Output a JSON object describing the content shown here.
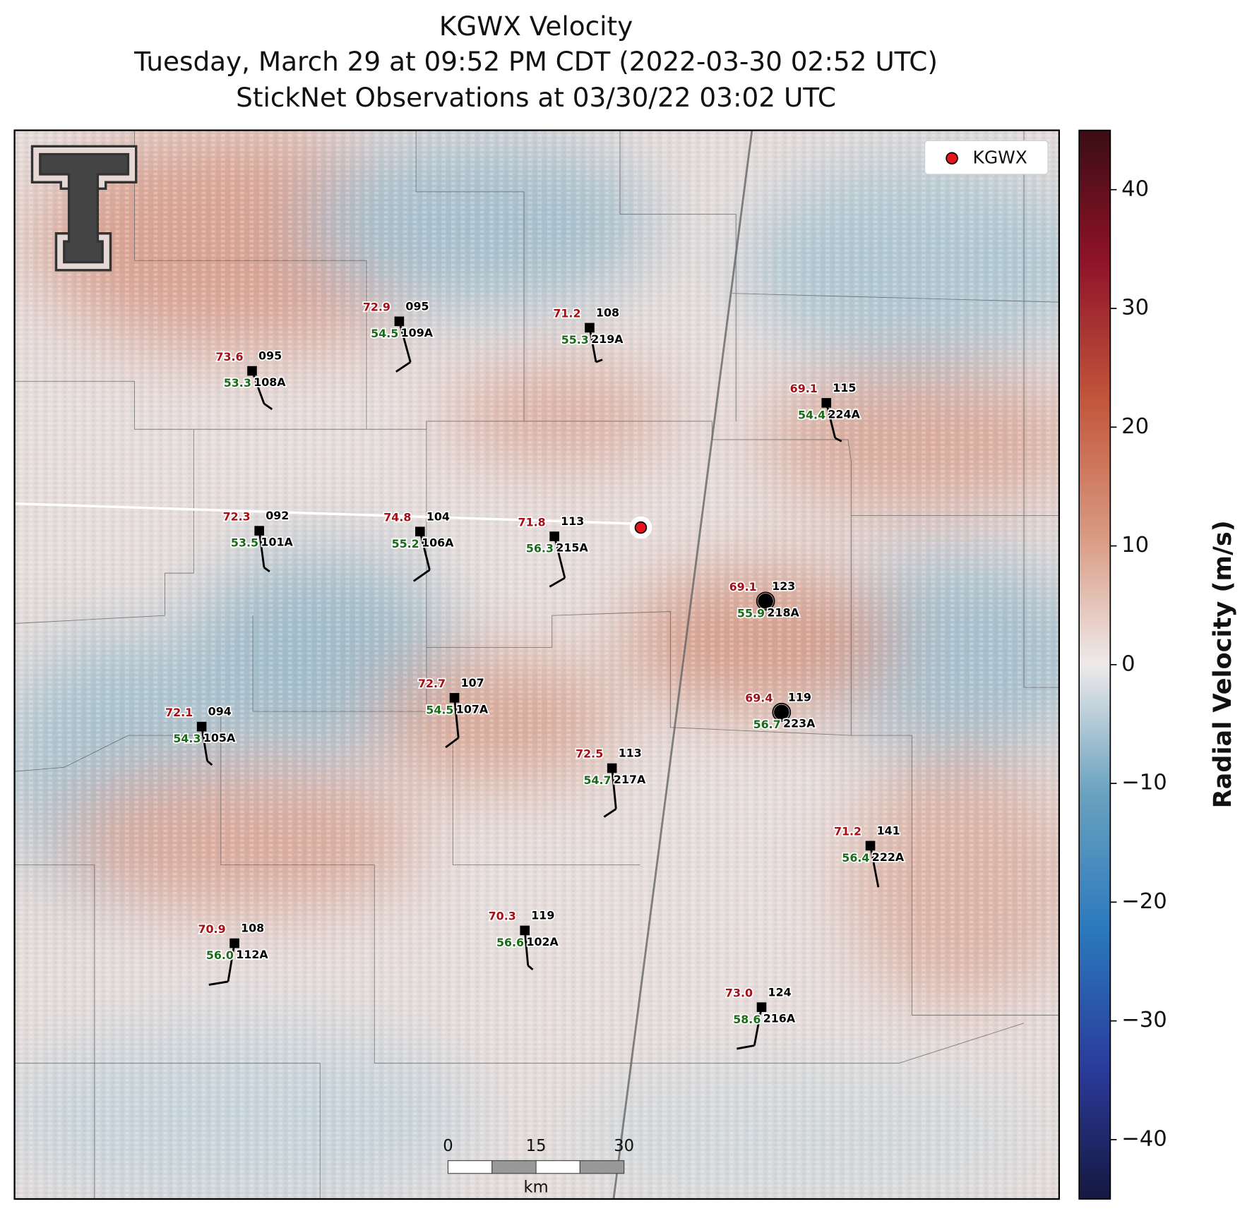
{
  "header": {
    "title": "KGWX Velocity",
    "subtitle": "Tuesday, March 29 at 09:52 PM CDT (2022-03-30 02:52 UTC)",
    "observations": "StickNet Observations at 03/30/22 03:02 UTC"
  },
  "legend": {
    "label": "KGWX"
  },
  "stations": [
    {
      "temperature": "73.6",
      "value": "095",
      "dewpoint": "53.3",
      "id": "108A"
    },
    {
      "temperature": "72.9",
      "value": "095",
      "dewpoint": "54.5",
      "id": "109A"
    },
    {
      "temperature": "71.2",
      "value": "108",
      "dewpoint": "55.3",
      "id": "219A"
    },
    {
      "temperature": "69.1",
      "value": "115",
      "dewpoint": "54.4",
      "id": "224A"
    },
    {
      "temperature": "72.3",
      "value": "092",
      "dewpoint": "53.5",
      "id": "101A"
    },
    {
      "temperature": "74.8",
      "value": "104",
      "dewpoint": "55.2",
      "id": "106A"
    },
    {
      "temperature": "71.8",
      "value": "113",
      "dewpoint": "56.3",
      "id": "215A"
    },
    {
      "temperature": "69.1",
      "value": "123",
      "dewpoint": "55.9",
      "id": "218A"
    },
    {
      "temperature": "72.7",
      "value": "107",
      "dewpoint": "54.5",
      "id": "107A"
    },
    {
      "temperature": "69.4",
      "value": "119",
      "dewpoint": "56.7",
      "id": "223A"
    },
    {
      "temperature": "72.1",
      "value": "094",
      "dewpoint": "54.3",
      "id": "105A"
    },
    {
      "temperature": "72.5",
      "value": "113",
      "dewpoint": "54.7",
      "id": "217A"
    },
    {
      "temperature": "71.2",
      "value": "141",
      "dewpoint": "56.4",
      "id": "222A"
    },
    {
      "temperature": "70.9",
      "value": "108",
      "dewpoint": "56.0",
      "id": "112A"
    },
    {
      "temperature": "70.3",
      "value": "119",
      "dewpoint": "56.6",
      "id": "102A"
    },
    {
      "temperature": "73.0",
      "value": "124",
      "dewpoint": "58.6",
      "id": "216A"
    }
  ],
  "scale_bar": {
    "labels": [
      "0",
      "15",
      "30"
    ],
    "unit": "km"
  },
  "colorbar": {
    "label": "Radial Velocity (m/s)",
    "lim": [
      -45,
      45
    ],
    "ticks": [
      {
        "value": -40,
        "label": "−40"
      },
      {
        "value": -30,
        "label": "−30"
      },
      {
        "value": -20,
        "label": "−20"
      },
      {
        "value": -10,
        "label": "−10"
      },
      0,
      10,
      20,
      30,
      40
    ]
  }
}
